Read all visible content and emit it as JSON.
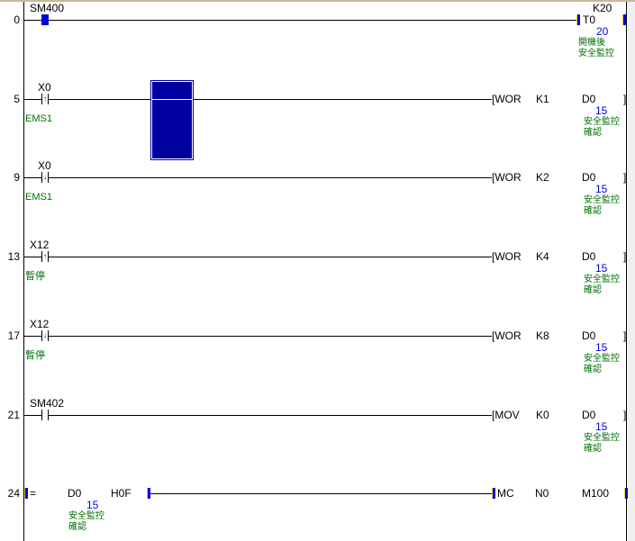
{
  "rungs": [
    {
      "step": "0",
      "contact": {
        "device": "SM400",
        "type": "normal-highlighted"
      },
      "coil": {
        "device": "T0",
        "setting": "K20",
        "value": "20",
        "comment": [
          "開機後",
          "安全監控"
        ]
      }
    },
    {
      "step": "5",
      "contact": {
        "device": "X0",
        "type": "rising",
        "comment": "EMS1"
      },
      "instr": {
        "op": "[WOR",
        "src": "K1",
        "dst": "D0",
        "value": "15",
        "comment": [
          "安全監控",
          "確認"
        ]
      }
    },
    {
      "step": "9",
      "contact": {
        "device": "X0",
        "type": "falling",
        "comment": "EMS1"
      },
      "instr": {
        "op": "[WOR",
        "src": "K2",
        "dst": "D0",
        "value": "15",
        "comment": [
          "安全監控",
          "確認"
        ]
      }
    },
    {
      "step": "13",
      "contact": {
        "device": "X12",
        "type": "rising",
        "comment": "暫停"
      },
      "instr": {
        "op": "[WOR",
        "src": "K4",
        "dst": "D0",
        "value": "15",
        "comment": [
          "安全監控",
          "確認"
        ]
      }
    },
    {
      "step": "17",
      "contact": {
        "device": "X12",
        "type": "falling",
        "comment": "暫停"
      },
      "instr": {
        "op": "[WOR",
        "src": "K8",
        "dst": "D0",
        "value": "15",
        "comment": [
          "安全監控",
          "確認"
        ]
      }
    },
    {
      "step": "21",
      "contact": {
        "device": "SM402",
        "type": "normal"
      },
      "instr": {
        "op": "[MOV",
        "src": "K0",
        "dst": "D0",
        "value": "15",
        "comment": [
          "安全監控",
          "確認"
        ]
      }
    },
    {
      "step": "24",
      "compare": {
        "op": "=",
        "a": "D0",
        "b": "H0F",
        "value": "15",
        "comment": [
          "安全監控",
          "確認"
        ]
      },
      "instr": {
        "op": "MC",
        "src": "N0",
        "dst": "M100"
      }
    }
  ],
  "close_bracket": "]",
  "colors": {
    "value": "#0000e0",
    "comment": "#007000",
    "cursor": "#0000a0"
  }
}
